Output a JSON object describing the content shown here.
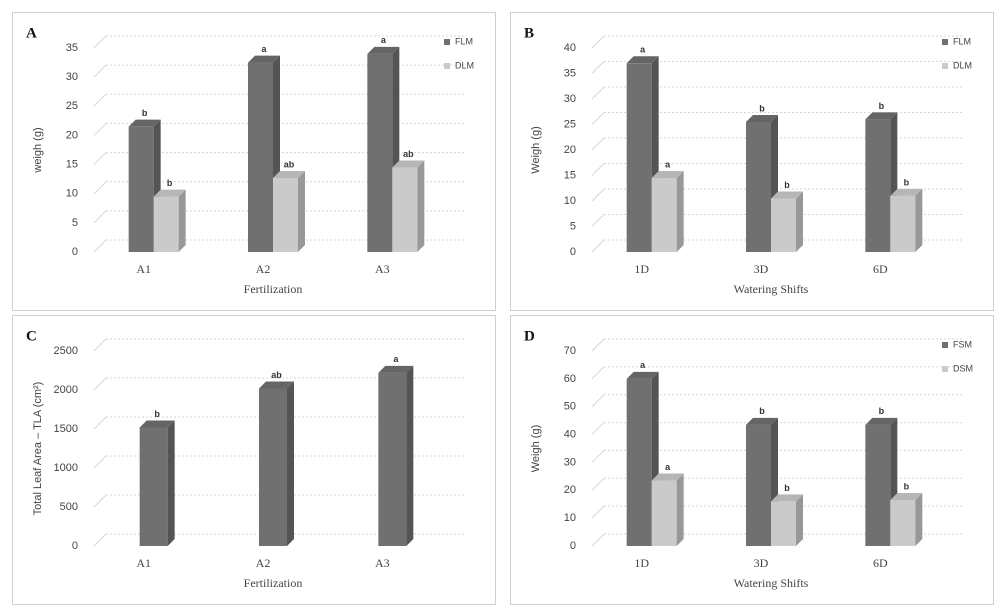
{
  "chart_data": [
    {
      "type": "bar",
      "title": "A",
      "categories": [
        "A1",
        "A2",
        "A3"
      ],
      "xlabel": "Fertilization",
      "ylabel": "weigh (g)",
      "ylim": [
        0,
        35
      ],
      "yticks": [
        0,
        5,
        10,
        15,
        20,
        25,
        30,
        35
      ],
      "grid": true,
      "series": [
        {
          "name": "FLM",
          "color": "#707070",
          "values": [
            21.5,
            32.5,
            34
          ],
          "letters": [
            "b",
            "a",
            "a"
          ]
        },
        {
          "name": "DLM",
          "color": "#cacaca",
          "values": [
            9.5,
            12.7,
            14.5
          ],
          "letters": [
            "b",
            "ab",
            "ab"
          ]
        }
      ]
    },
    {
      "type": "bar",
      "title": "B",
      "categories": [
        "1D",
        "3D",
        "6D"
      ],
      "xlabel": "Watering Shifts",
      "ylabel": "Weigh (g)",
      "ylim": [
        0,
        40
      ],
      "yticks": [
        0,
        5,
        10,
        15,
        20,
        25,
        30,
        35,
        40
      ],
      "grid": true,
      "series": [
        {
          "name": "FLM",
          "color": "#707070",
          "values": [
            37,
            25.5,
            26
          ],
          "letters": [
            "a",
            "b",
            "b"
          ]
        },
        {
          "name": "DLM",
          "color": "#cacaca",
          "values": [
            14.5,
            10.5,
            11
          ],
          "letters": [
            "a",
            "b",
            "b"
          ]
        }
      ]
    },
    {
      "type": "bar",
      "title": "C",
      "categories": [
        "A1",
        "A2",
        "A3"
      ],
      "xlabel": "Fertilization",
      "ylabel": "Total Leaf Area – TLA (cm²)",
      "ylim": [
        0,
        2500
      ],
      "yticks": [
        0,
        500,
        1000,
        1500,
        2000,
        2500
      ],
      "grid": true,
      "color": "#707070",
      "values": [
        1520,
        2020,
        2220
      ],
      "letters": [
        "b",
        "ab",
        "a"
      ]
    },
    {
      "type": "bar",
      "title": "D",
      "categories": [
        "1D",
        "3D",
        "6D"
      ],
      "xlabel": "Watering Shifts",
      "ylabel": "Weigh (g)",
      "ylim": [
        0,
        70
      ],
      "yticks": [
        0,
        10,
        20,
        30,
        40,
        50,
        60,
        70
      ],
      "grid": true,
      "series": [
        {
          "name": "FSM",
          "color": "#707070",
          "values": [
            60,
            43.5,
            43.5
          ],
          "letters": [
            "a",
            "b",
            "b"
          ]
        },
        {
          "name": "DSM",
          "color": "#cacaca",
          "values": [
            23.5,
            16,
            16.5
          ],
          "letters": [
            "a",
            "b",
            "b"
          ]
        }
      ]
    }
  ]
}
